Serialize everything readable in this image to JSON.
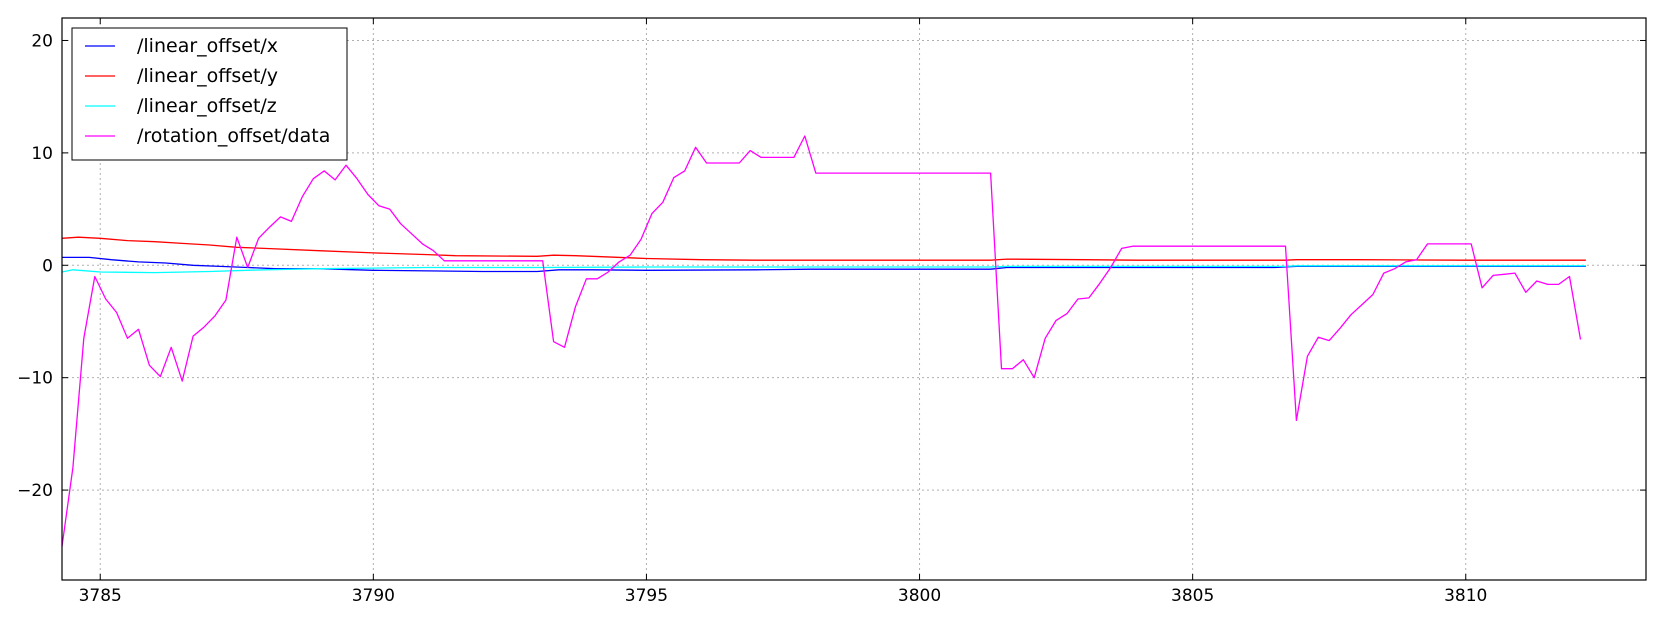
{
  "chart_data": {
    "type": "line",
    "title": "",
    "xlabel": "",
    "ylabel": "",
    "xlim": [
      3784.3,
      3813.3
    ],
    "ylim": [
      -28,
      22
    ],
    "x_ticks": [
      3785,
      3790,
      3795,
      3800,
      3805,
      3810
    ],
    "x_tick_labels": [
      "3785",
      "3790",
      "3795",
      "3800",
      "3805",
      "3810"
    ],
    "y_ticks": [
      -20,
      -10,
      0,
      10,
      20
    ],
    "y_tick_labels": [
      "−20",
      "−10",
      "0",
      "10",
      "20"
    ],
    "grid": true,
    "legend_position": "top-left",
    "series": [
      {
        "name": "/linear_offset/x",
        "color": "#0000ff",
        "points": [
          [
            3784.3,
            0.7
          ],
          [
            3784.8,
            0.7
          ],
          [
            3785.2,
            0.5
          ],
          [
            3785.7,
            0.3
          ],
          [
            3786.2,
            0.2
          ],
          [
            3786.7,
            0.0
          ],
          [
            3787.2,
            -0.1
          ],
          [
            3787.7,
            -0.2
          ],
          [
            3788.2,
            -0.3
          ],
          [
            3789.0,
            -0.3
          ],
          [
            3790.0,
            -0.45
          ],
          [
            3791.0,
            -0.5
          ],
          [
            3792.0,
            -0.55
          ],
          [
            3793.0,
            -0.55
          ],
          [
            3793.4,
            -0.4
          ],
          [
            3794.0,
            -0.4
          ],
          [
            3795.0,
            -0.45
          ],
          [
            3797.0,
            -0.4
          ],
          [
            3798.0,
            -0.35
          ],
          [
            3801.3,
            -0.35
          ],
          [
            3801.6,
            -0.2
          ],
          [
            3806.5,
            -0.2
          ],
          [
            3806.9,
            -0.1
          ],
          [
            3810.0,
            -0.1
          ],
          [
            3812.2,
            -0.1
          ]
        ]
      },
      {
        "name": "/linear_offset/y",
        "color": "#ff0000",
        "points": [
          [
            3784.3,
            2.4
          ],
          [
            3784.6,
            2.5
          ],
          [
            3785.0,
            2.4
          ],
          [
            3785.5,
            2.2
          ],
          [
            3786.0,
            2.1
          ],
          [
            3786.5,
            1.95
          ],
          [
            3787.0,
            1.8
          ],
          [
            3787.5,
            1.6
          ],
          [
            3788.0,
            1.5
          ],
          [
            3789.0,
            1.3
          ],
          [
            3790.0,
            1.1
          ],
          [
            3791.0,
            0.95
          ],
          [
            3791.5,
            0.85
          ],
          [
            3793.0,
            0.8
          ],
          [
            3793.3,
            0.9
          ],
          [
            3793.7,
            0.85
          ],
          [
            3794.0,
            0.8
          ],
          [
            3795.0,
            0.6
          ],
          [
            3796.0,
            0.5
          ],
          [
            3797.0,
            0.45
          ],
          [
            3798.0,
            0.45
          ],
          [
            3801.3,
            0.45
          ],
          [
            3801.6,
            0.55
          ],
          [
            3803.0,
            0.5
          ],
          [
            3804.0,
            0.45
          ],
          [
            3806.7,
            0.45
          ],
          [
            3806.9,
            0.5
          ],
          [
            3808.0,
            0.5
          ],
          [
            3810.0,
            0.45
          ],
          [
            3812.2,
            0.45
          ]
        ]
      },
      {
        "name": "/linear_offset/z",
        "color": "#00ffff",
        "points": [
          [
            3784.3,
            -0.6
          ],
          [
            3784.5,
            -0.4
          ],
          [
            3785.0,
            -0.6
          ],
          [
            3786.0,
            -0.65
          ],
          [
            3787.0,
            -0.55
          ],
          [
            3788.0,
            -0.4
          ],
          [
            3789.0,
            -0.3
          ],
          [
            3790.0,
            -0.25
          ],
          [
            3791.0,
            -0.2
          ],
          [
            3793.0,
            -0.2
          ],
          [
            3795.0,
            -0.15
          ],
          [
            3797.0,
            -0.15
          ],
          [
            3801.3,
            -0.15
          ],
          [
            3801.6,
            -0.1
          ],
          [
            3806.7,
            -0.1
          ],
          [
            3806.9,
            -0.05
          ],
          [
            3812.2,
            -0.05
          ]
        ]
      },
      {
        "name": "/rotation_offset/data",
        "color": "#ff00ff",
        "points": [
          [
            3784.3,
            -25
          ],
          [
            3784.5,
            -18
          ],
          [
            3784.7,
            -6.5
          ],
          [
            3784.9,
            -1
          ],
          [
            3785.1,
            -3
          ],
          [
            3785.3,
            -4.2
          ],
          [
            3785.5,
            -6.5
          ],
          [
            3785.7,
            -5.7
          ],
          [
            3785.9,
            -8.9
          ],
          [
            3786.1,
            -9.9
          ],
          [
            3786.3,
            -7.3
          ],
          [
            3786.5,
            -10.3
          ],
          [
            3786.7,
            -6.3
          ],
          [
            3786.9,
            -5.5
          ],
          [
            3787.1,
            -4.5
          ],
          [
            3787.3,
            -3.1
          ],
          [
            3787.5,
            2.5
          ],
          [
            3787.7,
            -0.2
          ],
          [
            3787.9,
            2.4
          ],
          [
            3788.1,
            3.4
          ],
          [
            3788.3,
            4.3
          ],
          [
            3788.5,
            3.9
          ],
          [
            3788.7,
            6.1
          ],
          [
            3788.9,
            7.7
          ],
          [
            3789.1,
            8.4
          ],
          [
            3789.3,
            7.6
          ],
          [
            3789.5,
            8.9
          ],
          [
            3789.7,
            7.7
          ],
          [
            3789.9,
            6.3
          ],
          [
            3790.1,
            5.3
          ],
          [
            3790.3,
            5
          ],
          [
            3790.5,
            3.7
          ],
          [
            3790.7,
            2.8
          ],
          [
            3790.9,
            1.9
          ],
          [
            3791.1,
            1.3
          ],
          [
            3791.3,
            0.4
          ],
          [
            3793.1,
            0.4
          ],
          [
            3793.3,
            -6.8
          ],
          [
            3793.5,
            -7.3
          ],
          [
            3793.7,
            -3.7
          ],
          [
            3793.9,
            -1.2
          ],
          [
            3794.1,
            -1.2
          ],
          [
            3794.3,
            -0.6
          ],
          [
            3794.5,
            0.3
          ],
          [
            3794.7,
            0.9
          ],
          [
            3794.9,
            2.3
          ],
          [
            3795.1,
            4.6
          ],
          [
            3795.3,
            5.6
          ],
          [
            3795.5,
            7.8
          ],
          [
            3795.7,
            8.4
          ],
          [
            3795.9,
            10.5
          ],
          [
            3796.1,
            9.1
          ],
          [
            3796.3,
            9.1
          ],
          [
            3796.5,
            9.1
          ],
          [
            3796.7,
            9.1
          ],
          [
            3796.9,
            10.2
          ],
          [
            3797.1,
            9.6
          ],
          [
            3797.3,
            9.6
          ],
          [
            3797.5,
            9.6
          ],
          [
            3797.7,
            9.6
          ],
          [
            3797.9,
            11.5
          ],
          [
            3798.1,
            8.2
          ],
          [
            3801.3,
            8.2
          ],
          [
            3801.5,
            -9.2
          ],
          [
            3801.7,
            -9.2
          ],
          [
            3801.9,
            -8.4
          ],
          [
            3802.1,
            -10
          ],
          [
            3802.3,
            -6.5
          ],
          [
            3802.5,
            -4.9
          ],
          [
            3802.7,
            -4.3
          ],
          [
            3802.9,
            -3
          ],
          [
            3803.1,
            -2.9
          ],
          [
            3803.3,
            -1.6
          ],
          [
            3803.5,
            -0.2
          ],
          [
            3803.7,
            1.5
          ],
          [
            3803.9,
            1.7
          ],
          [
            3806.7,
            1.7
          ],
          [
            3806.9,
            -13.8
          ],
          [
            3807.1,
            -8.1
          ],
          [
            3807.3,
            -6.4
          ],
          [
            3807.5,
            -6.7
          ],
          [
            3807.7,
            -5.6
          ],
          [
            3807.9,
            -4.4
          ],
          [
            3808.1,
            -3.5
          ],
          [
            3808.3,
            -2.6
          ],
          [
            3808.5,
            -0.7
          ],
          [
            3808.7,
            -0.3
          ],
          [
            3808.9,
            0.3
          ],
          [
            3809.1,
            0.5
          ],
          [
            3809.3,
            1.9
          ],
          [
            3810.1,
            1.9
          ],
          [
            3810.3,
            -2
          ],
          [
            3810.5,
            -0.9
          ],
          [
            3810.7,
            -0.8
          ],
          [
            3810.9,
            -0.7
          ],
          [
            3811.1,
            -2.4
          ],
          [
            3811.3,
            -1.4
          ],
          [
            3811.5,
            -1.7
          ],
          [
            3811.7,
            -1.7
          ],
          [
            3811.9,
            -1
          ],
          [
            3812.1,
            -6.6
          ]
        ]
      }
    ]
  }
}
